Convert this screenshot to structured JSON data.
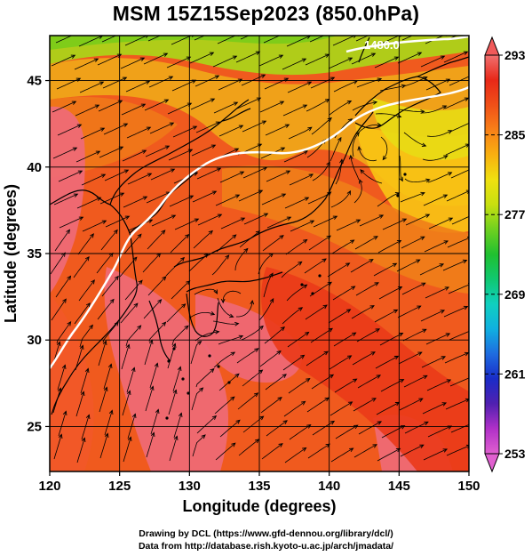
{
  "title": "MSM 15Z15Sep2023 (850.0hPa)",
  "map": {
    "x_axis": {
      "label": "Longitude (degrees)",
      "min": 120,
      "max": 150,
      "ticks": [
        120,
        125,
        130,
        135,
        140,
        145,
        150
      ],
      "tick_labels": [
        "120",
        "125",
        "130",
        "135",
        "140",
        "145",
        "150"
      ]
    },
    "y_axis": {
      "label": "Latitude  (degrees)",
      "min": 22.4,
      "max": 47.6,
      "ticks": [
        25,
        30,
        35,
        40,
        45
      ],
      "tick_labels": [
        "25",
        "30",
        "35",
        "40",
        "45"
      ]
    },
    "grid": true,
    "contour_label": "1480.0",
    "layers": [
      "temperature-shading",
      "streamlines",
      "coastlines",
      "geopotential-contour"
    ]
  },
  "colorbar": {
    "min": 253,
    "max": 293,
    "tick_labels": [
      "293",
      "285",
      "277",
      "269",
      "261",
      "253"
    ],
    "colors": [
      "#e060d0",
      "#b030c8",
      "#5020b0",
      "#1a2cc8",
      "#1e6be0",
      "#10b0e0",
      "#10d0c0",
      "#10c870",
      "#20c030",
      "#70d020",
      "#c8e010",
      "#f0e010",
      "#f8b010",
      "#f88018",
      "#f05018",
      "#e82818",
      "#f07070"
    ]
  },
  "credits": {
    "line1": "Drawing by DCL (https://www.gfd-dennou.org/library/dcl/)",
    "line2": "Data from http://database.rish.kyoto-u.ac.jp/arch/jmadata/"
  }
}
